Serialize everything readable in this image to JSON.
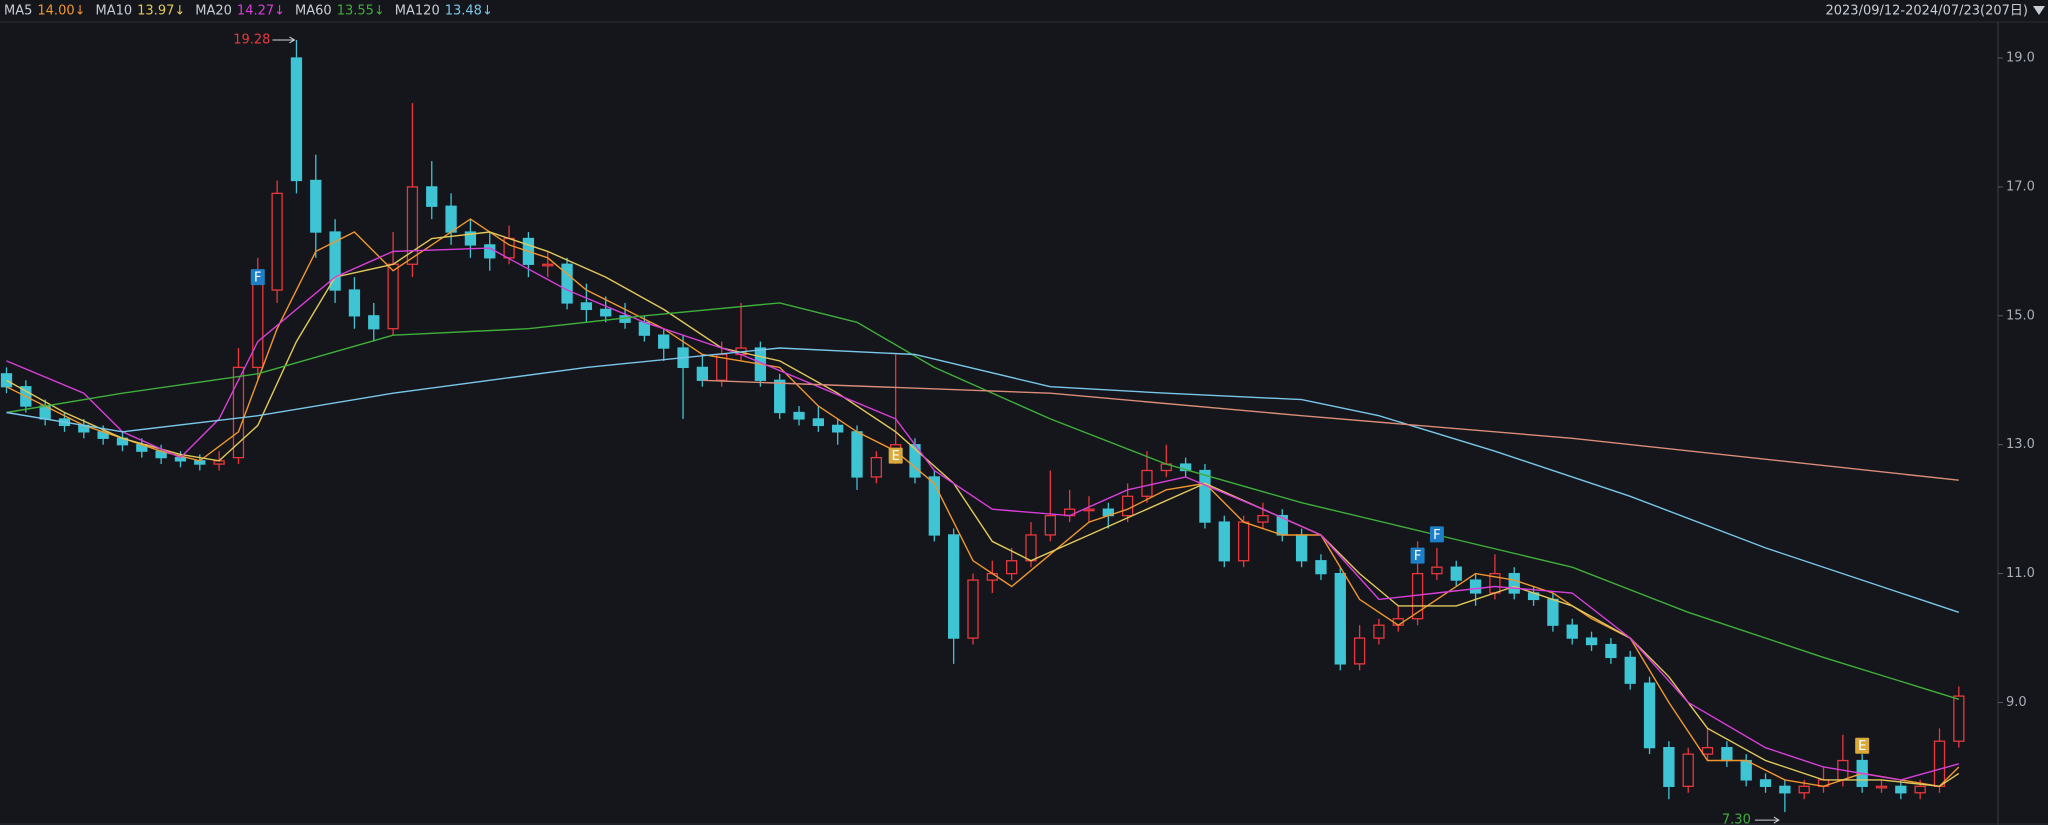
{
  "chart_data": {
    "type": "candlestick",
    "range": "2023/09/12-2024/07/23(207日)",
    "ylim": [
      7.1,
      19.9
    ],
    "yticks": [
      {
        "value": 9,
        "label": "9.0"
      },
      {
        "value": 11,
        "label": "11.0"
      },
      {
        "value": 13,
        "label": "13.0"
      },
      {
        "value": 15,
        "label": "15.0"
      },
      {
        "value": 17,
        "label": "17.0"
      },
      {
        "value": 19,
        "label": "19.0"
      }
    ],
    "up_color": "#e8383d",
    "down_color": "#3fc4d4",
    "ohlc": [
      [
        14.1,
        14.2,
        13.8,
        13.9
      ],
      [
        13.9,
        14.0,
        13.5,
        13.6
      ],
      [
        13.6,
        13.7,
        13.3,
        13.4
      ],
      [
        13.4,
        13.5,
        13.2,
        13.3
      ],
      [
        13.3,
        13.4,
        13.1,
        13.2
      ],
      [
        13.2,
        13.3,
        13.0,
        13.1
      ],
      [
        13.1,
        13.2,
        12.9,
        13.0
      ],
      [
        13.0,
        13.1,
        12.8,
        12.9
      ],
      [
        12.9,
        13.0,
        12.7,
        12.8
      ],
      [
        12.8,
        12.9,
        12.65,
        12.75
      ],
      [
        12.75,
        12.85,
        12.6,
        12.7
      ],
      [
        12.7,
        12.9,
        12.6,
        12.75
      ],
      [
        12.8,
        14.5,
        12.7,
        14.2
      ],
      [
        14.2,
        15.9,
        14.0,
        15.5
      ],
      [
        15.4,
        17.1,
        15.2,
        16.9
      ],
      [
        19.0,
        19.28,
        16.9,
        17.1
      ],
      [
        17.1,
        17.5,
        15.9,
        16.3
      ],
      [
        16.3,
        16.5,
        15.2,
        15.4
      ],
      [
        15.4,
        15.6,
        14.8,
        15.0
      ],
      [
        15.0,
        15.2,
        14.6,
        14.8
      ],
      [
        14.8,
        16.3,
        14.7,
        15.8
      ],
      [
        15.8,
        18.3,
        15.6,
        17.0
      ],
      [
        17.0,
        17.4,
        16.5,
        16.7
      ],
      [
        16.7,
        16.9,
        16.1,
        16.3
      ],
      [
        16.3,
        16.5,
        15.9,
        16.1
      ],
      [
        16.1,
        16.3,
        15.7,
        15.9
      ],
      [
        15.9,
        16.4,
        15.8,
        16.2
      ],
      [
        16.2,
        16.3,
        15.6,
        15.8
      ],
      [
        15.8,
        16.0,
        15.6,
        15.8
      ],
      [
        15.8,
        15.9,
        15.1,
        15.2
      ],
      [
        15.2,
        15.5,
        14.9,
        15.1
      ],
      [
        15.1,
        15.3,
        14.9,
        15.0
      ],
      [
        15.0,
        15.2,
        14.8,
        14.9
      ],
      [
        14.9,
        15.0,
        14.6,
        14.7
      ],
      [
        14.7,
        14.8,
        14.3,
        14.5
      ],
      [
        14.5,
        14.7,
        13.4,
        14.2
      ],
      [
        14.2,
        14.4,
        13.9,
        14.0
      ],
      [
        14.0,
        14.6,
        13.9,
        14.4
      ],
      [
        14.4,
        15.2,
        14.3,
        14.5
      ],
      [
        14.5,
        14.6,
        13.9,
        14.0
      ],
      [
        14.0,
        14.1,
        13.4,
        13.5
      ],
      [
        13.5,
        13.6,
        13.3,
        13.4
      ],
      [
        13.4,
        13.6,
        13.2,
        13.3
      ],
      [
        13.3,
        13.4,
        13.0,
        13.2
      ],
      [
        13.2,
        13.3,
        12.3,
        12.5
      ],
      [
        12.5,
        12.9,
        12.4,
        12.8
      ],
      [
        12.8,
        14.4,
        12.7,
        13.0
      ],
      [
        13.0,
        13.1,
        12.4,
        12.5
      ],
      [
        12.5,
        12.6,
        11.5,
        11.6
      ],
      [
        11.6,
        11.7,
        9.6,
        10.0
      ],
      [
        10.0,
        11.0,
        9.9,
        10.9
      ],
      [
        10.9,
        11.2,
        10.7,
        11.0
      ],
      [
        11.0,
        11.4,
        10.9,
        11.2
      ],
      [
        11.2,
        11.8,
        11.1,
        11.6
      ],
      [
        11.6,
        12.6,
        11.5,
        11.9
      ],
      [
        11.9,
        12.3,
        11.8,
        12.0
      ],
      [
        12.0,
        12.2,
        11.8,
        12.0
      ],
      [
        12.0,
        12.1,
        11.7,
        11.9
      ],
      [
        11.9,
        12.4,
        11.8,
        12.2
      ],
      [
        12.2,
        12.9,
        12.1,
        12.6
      ],
      [
        12.6,
        13.0,
        12.5,
        12.7
      ],
      [
        12.7,
        12.8,
        12.5,
        12.6
      ],
      [
        12.6,
        12.7,
        11.7,
        11.8
      ],
      [
        11.8,
        11.9,
        11.1,
        11.2
      ],
      [
        11.2,
        11.9,
        11.1,
        11.8
      ],
      [
        11.8,
        12.1,
        11.7,
        11.9
      ],
      [
        11.9,
        12.0,
        11.5,
        11.6
      ],
      [
        11.6,
        11.7,
        11.1,
        11.2
      ],
      [
        11.2,
        11.3,
        10.9,
        11.0
      ],
      [
        11.0,
        11.1,
        9.5,
        9.6
      ],
      [
        9.6,
        10.2,
        9.5,
        10.0
      ],
      [
        10.0,
        10.3,
        9.9,
        10.2
      ],
      [
        10.2,
        10.5,
        10.1,
        10.3
      ],
      [
        10.3,
        11.5,
        10.2,
        11.0
      ],
      [
        11.0,
        11.4,
        10.9,
        11.1
      ],
      [
        11.1,
        11.2,
        10.8,
        10.9
      ],
      [
        10.9,
        11.0,
        10.5,
        10.7
      ],
      [
        10.7,
        11.3,
        10.6,
        11.0
      ],
      [
        11.0,
        11.1,
        10.6,
        10.7
      ],
      [
        10.7,
        10.8,
        10.5,
        10.6
      ],
      [
        10.6,
        10.7,
        10.1,
        10.2
      ],
      [
        10.2,
        10.3,
        9.9,
        10.0
      ],
      [
        10.0,
        10.1,
        9.8,
        9.9
      ],
      [
        9.9,
        10.0,
        9.6,
        9.7
      ],
      [
        9.7,
        9.8,
        9.2,
        9.3
      ],
      [
        9.3,
        9.4,
        8.2,
        8.3
      ],
      [
        8.3,
        8.4,
        7.5,
        7.7
      ],
      [
        7.7,
        8.3,
        7.6,
        8.2
      ],
      [
        8.2,
        8.6,
        8.1,
        8.3
      ],
      [
        8.3,
        8.4,
        8.0,
        8.1
      ],
      [
        8.1,
        8.2,
        7.7,
        7.8
      ],
      [
        7.8,
        7.9,
        7.6,
        7.7
      ],
      [
        7.7,
        7.8,
        7.3,
        7.6
      ],
      [
        7.6,
        7.8,
        7.5,
        7.7
      ],
      [
        7.7,
        8.0,
        7.6,
        7.8
      ],
      [
        7.8,
        8.5,
        7.7,
        8.1
      ],
      [
        8.1,
        8.2,
        7.6,
        7.7
      ],
      [
        7.7,
        7.8,
        7.6,
        7.7
      ],
      [
        7.7,
        7.8,
        7.5,
        7.6
      ],
      [
        7.6,
        7.8,
        7.5,
        7.7
      ],
      [
        7.7,
        8.6,
        7.6,
        8.4
      ],
      [
        8.4,
        9.25,
        8.3,
        9.1
      ]
    ],
    "series": [
      {
        "name": "MA5",
        "color": "#f0962e",
        "value_label": "14.00↓",
        "x": [
          0,
          2,
          4,
          6,
          8,
          10,
          12,
          14,
          16,
          18,
          20,
          22,
          24,
          26,
          28,
          30,
          32,
          34,
          36,
          38,
          40,
          42,
          44,
          46,
          48,
          50,
          52,
          54,
          56,
          58,
          60,
          62,
          64,
          66,
          68,
          70,
          72,
          74,
          76,
          78,
          80,
          82,
          84,
          86,
          88,
          90,
          92,
          94,
          96,
          98,
          100,
          101
        ],
        "values": [
          13.9,
          13.6,
          13.3,
          13.1,
          12.9,
          12.75,
          13.2,
          14.8,
          16.0,
          16.3,
          15.7,
          16.1,
          16.5,
          16.1,
          15.9,
          15.4,
          15.1,
          14.8,
          14.4,
          14.3,
          14.2,
          13.6,
          13.2,
          12.9,
          12.4,
          11.2,
          10.8,
          11.3,
          11.8,
          12.0,
          12.3,
          12.4,
          11.8,
          11.6,
          11.6,
          10.6,
          10.2,
          10.6,
          11.0,
          10.9,
          10.7,
          10.3,
          10.0,
          9.0,
          8.1,
          8.1,
          7.8,
          7.7,
          7.9,
          7.8,
          7.7,
          8.0
        ]
      },
      {
        "name": "MA10",
        "color": "#e2c85a",
        "value_label": "13.97↓",
        "x": [
          0,
          3,
          6,
          9,
          11,
          13,
          15,
          17,
          20,
          22,
          25,
          28,
          31,
          34,
          37,
          40,
          43,
          46,
          49,
          51,
          53,
          56,
          59,
          62,
          65,
          68,
          70,
          72,
          75,
          78,
          81,
          84,
          86,
          88,
          91,
          94,
          97,
          100,
          101
        ],
        "values": [
          14.0,
          13.5,
          13.1,
          12.85,
          12.75,
          13.3,
          14.6,
          15.6,
          15.8,
          16.2,
          16.3,
          16.0,
          15.6,
          15.1,
          14.5,
          14.3,
          13.8,
          13.2,
          12.4,
          11.5,
          11.2,
          11.6,
          12.0,
          12.4,
          12.0,
          11.6,
          11.0,
          10.5,
          10.5,
          10.8,
          10.5,
          10.0,
          9.4,
          8.6,
          8.1,
          7.8,
          7.8,
          7.7,
          7.9
        ]
      },
      {
        "name": "MA20",
        "color": "#d83ed8",
        "value_label": "14.27↓",
        "x": [
          0,
          4,
          6,
          9,
          11,
          13,
          17,
          20,
          25,
          29,
          33,
          38,
          42,
          46,
          48,
          51,
          55,
          58,
          61,
          65,
          68,
          71,
          74,
          77,
          81,
          84,
          87,
          91,
          94,
          98,
          101
        ],
        "values": [
          14.3,
          13.8,
          13.2,
          12.8,
          13.4,
          14.6,
          15.6,
          16.0,
          16.05,
          15.4,
          14.9,
          14.4,
          13.9,
          13.4,
          12.6,
          12.0,
          11.9,
          12.3,
          12.5,
          12.0,
          11.6,
          10.6,
          10.7,
          10.8,
          10.7,
          10.0,
          9.0,
          8.3,
          8.0,
          7.8,
          8.05
        ]
      },
      {
        "name": "MA60",
        "color": "#3fae3a",
        "value_label": "13.55↓",
        "x": [
          0,
          6,
          13,
          20,
          27,
          33,
          40,
          44,
          48,
          54,
          60,
          67,
          74,
          81,
          87,
          94,
          101
        ],
        "values": [
          13.5,
          13.8,
          14.1,
          14.7,
          14.8,
          15.0,
          15.2,
          14.9,
          14.2,
          13.4,
          12.7,
          12.1,
          11.6,
          11.1,
          10.4,
          9.7,
          9.05
        ]
      },
      {
        "name": "MA120",
        "color": "#79c6e8",
        "value_label": "13.48↓",
        "x": [
          0,
          6,
          13,
          20,
          30,
          40,
          47,
          54,
          60,
          67,
          71,
          77,
          84,
          91,
          98,
          101
        ],
        "values": [
          13.5,
          13.2,
          13.45,
          13.8,
          14.2,
          14.5,
          14.4,
          13.9,
          13.8,
          13.7,
          13.45,
          12.9,
          12.2,
          11.4,
          10.7,
          10.4
        ]
      },
      {
        "color": "#d98c78",
        "x": [
          36,
          54,
          67,
          81,
          101
        ],
        "values": [
          14.0,
          13.8,
          13.45,
          13.1,
          12.45
        ]
      }
    ],
    "annotations": {
      "high": {
        "x": 15,
        "value": 19.28,
        "color": "#e8383d"
      },
      "low": {
        "x": 92,
        "value": {
          "value": 7.3,
          "label": "7.30"
        },
        "color": "#3fae3a"
      }
    },
    "markers": [
      {
        "label": "F",
        "x": 13,
        "y": 15.6,
        "color": "#1d7fc6"
      },
      {
        "label": "E",
        "x": 46,
        "y": 12.83,
        "color": "#d9a93a"
      },
      {
        "label": "F",
        "x": 73,
        "y": 11.28,
        "color": "#1d7fc6"
      },
      {
        "label": "F",
        "x": 74,
        "y": 11.61,
        "color": "#1d7fc6"
      },
      {
        "label": "E",
        "x": 96,
        "y": 8.33,
        "color": "#d9a93a"
      }
    ]
  }
}
